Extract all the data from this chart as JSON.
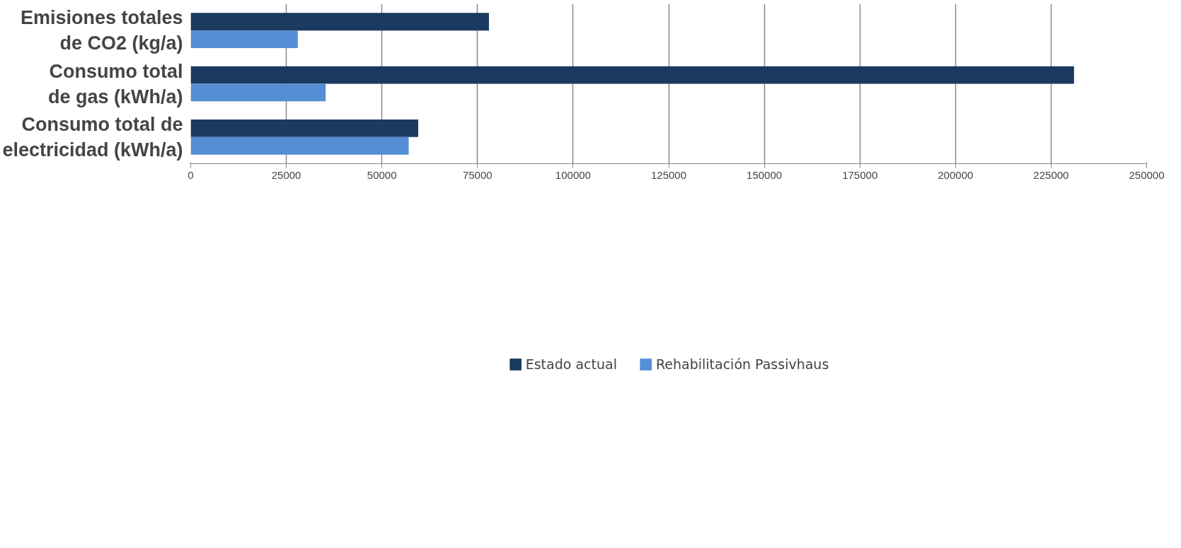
{
  "chart_data": {
    "type": "bar",
    "orientation": "horizontal",
    "categories": [
      "Emisiones totales\nde CO2 (kg/a)",
      "Consumo total\nde gas (kWh/a)",
      "Consumo total de\nelectricidad (kWh/a)"
    ],
    "series": [
      {
        "name": "Estado actual",
        "color": "#1b3a5f",
        "values": [
          78000,
          231000,
          59500
        ]
      },
      {
        "name": "Rehabilitación Passivhaus",
        "color": "#558ed5",
        "values": [
          28000,
          35300,
          57000
        ]
      }
    ],
    "xlim": [
      0,
      250000
    ],
    "xticks": [
      0,
      25000,
      50000,
      75000,
      100000,
      125000,
      150000,
      175000,
      200000,
      225000,
      250000
    ],
    "grid": "x",
    "legend": "bottom"
  }
}
